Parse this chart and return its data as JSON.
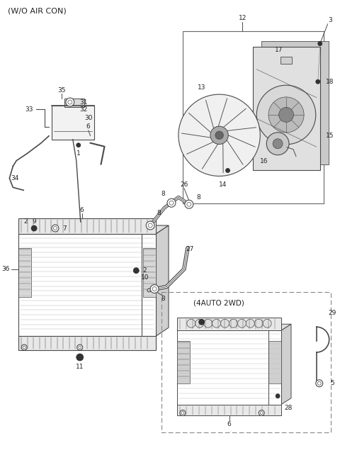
{
  "bg_color": "#ffffff",
  "lc": "#4a4a4a",
  "lc_light": "#aaaaaa",
  "fig_w": 4.8,
  "fig_h": 6.56,
  "dpi": 100,
  "title": "(W/O AIR CON)",
  "sub_label": "(4AUTO 2WD)",
  "parts": {
    "1": "1",
    "2": "2",
    "3": "3",
    "5": "5",
    "6": "6",
    "7": "7",
    "8": "8",
    "9": "9",
    "10": "10",
    "11": "11",
    "12": "12",
    "13": "13",
    "14": "14",
    "15": "15",
    "16": "16",
    "17": "17",
    "18": "18",
    "26": "26",
    "27": "27",
    "28": "28",
    "29": "29",
    "30": "30",
    "31": "31",
    "32": "32",
    "33": "33",
    "34": "34",
    "35": "35",
    "36": "36"
  }
}
